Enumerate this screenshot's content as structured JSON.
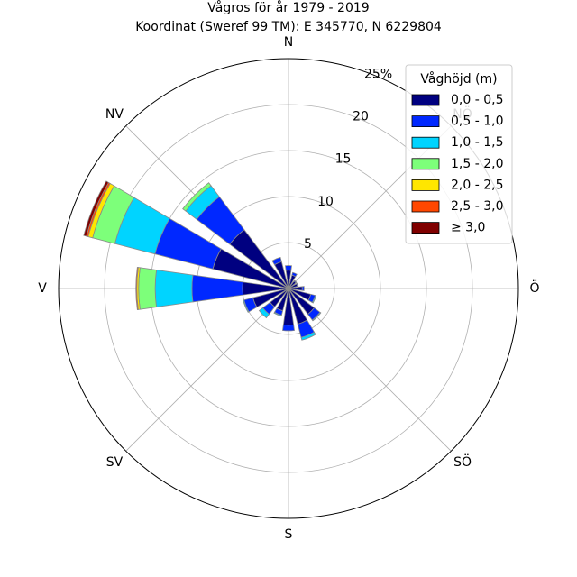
{
  "chart_data": {
    "type": "windrose",
    "title": "Vågros för år 1979 - 2019",
    "subtitle": "Koordinat (Sweref 99 TM): E 345770, N 6229804",
    "directions": [
      "N",
      "NV",
      "V",
      "SV",
      "S",
      "SÖ",
      "Ö",
      "NÖ"
    ],
    "radial_ticks": [
      "5",
      "10",
      "15",
      "20",
      "25%"
    ],
    "rmax": 25,
    "grid": true,
    "legend": {
      "title": "Våghöjd (m)",
      "placement": "top-right",
      "bins": [
        "0,0 - 0,5",
        "0,5 - 1,0",
        "1,0 - 1,5",
        "1,5 - 2,0",
        "2,0 - 2,5",
        "2,5 - 3,0",
        "≥ 3,0"
      ],
      "colors": [
        "#000080",
        "#0028ff",
        "#00d4ff",
        "#7dff7a",
        "#ffe600",
        "#ff4700",
        "#800000"
      ]
    },
    "sector_direction_deg": [
      0,
      22.5,
      45,
      67.5,
      90,
      112.5,
      135,
      157.5,
      180,
      202.5,
      225,
      247.5,
      270,
      292.5,
      315,
      337.5
    ],
    "series": [
      {
        "name": "0,0 - 0,5",
        "values": [
          2.0,
          1.5,
          1.0,
          1.0,
          1.5,
          2.5,
          3.5,
          4.0,
          4.0,
          2.5,
          2.5,
          4.0,
          5.0,
          8.5,
          8.0,
          3.0
        ]
      },
      {
        "name": "0,5 - 1,0",
        "values": [
          0.5,
          0.3,
          0.1,
          0.1,
          0.2,
          0.5,
          0.8,
          1.5,
          0.6,
          0.5,
          1.0,
          1.0,
          5.5,
          6.5,
          4.5,
          0.5
        ]
      },
      {
        "name": "1,0 - 1,5",
        "values": [
          0.0,
          0.0,
          0.0,
          0.0,
          0.0,
          0.1,
          0.1,
          0.3,
          0.0,
          0.1,
          0.5,
          0.1,
          4.0,
          4.5,
          1.5,
          0.0
        ]
      },
      {
        "name": "1,5 - 2,0",
        "values": [
          0.0,
          0.0,
          0.0,
          0.0,
          0.0,
          0.0,
          0.0,
          0.0,
          0.0,
          0.0,
          0.0,
          0.0,
          1.8,
          2.5,
          0.4,
          0.0
        ]
      },
      {
        "name": "2,0 - 2,5",
        "values": [
          0.0,
          0.0,
          0.0,
          0.0,
          0.0,
          0.0,
          0.0,
          0.0,
          0.0,
          0.0,
          0.0,
          0.0,
          0.2,
          0.5,
          0.0,
          0.0
        ]
      },
      {
        "name": "2,5 - 3,0",
        "values": [
          0.0,
          0.0,
          0.0,
          0.0,
          0.0,
          0.0,
          0.0,
          0.0,
          0.0,
          0.0,
          0.0,
          0.0,
          0.1,
          0.2,
          0.0,
          0.0
        ]
      },
      {
        "name": "≥ 3,0",
        "values": [
          0.0,
          0.0,
          0.0,
          0.0,
          0.0,
          0.0,
          0.0,
          0.0,
          0.0,
          0.0,
          0.0,
          0.0,
          0.0,
          0.3,
          0.0,
          0.0
        ]
      }
    ]
  }
}
